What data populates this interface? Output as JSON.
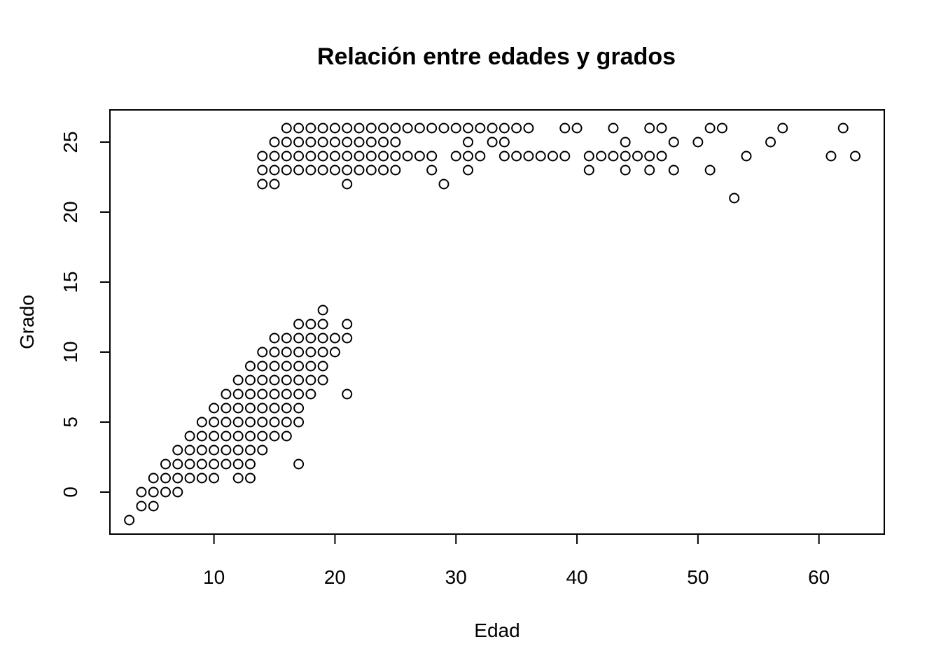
{
  "chart_data": {
    "type": "scatter",
    "title": "Relación entre edades y grados",
    "xlabel": "Edad",
    "ylabel": "Grado",
    "xlim": [
      1.4,
      65.4
    ],
    "ylim": [
      -3,
      27.3
    ],
    "xticks": [
      10,
      20,
      30,
      40,
      50,
      60
    ],
    "yticks": [
      0,
      5,
      10,
      15,
      20,
      25
    ],
    "grid": false,
    "marker": "open-circle",
    "points": [
      [
        3,
        -2
      ],
      [
        4,
        -1
      ],
      [
        4,
        0
      ],
      [
        5,
        -1
      ],
      [
        5,
        0
      ],
      [
        5,
        1
      ],
      [
        6,
        0
      ],
      [
        6,
        1
      ],
      [
        6,
        2
      ],
      [
        7,
        0
      ],
      [
        7,
        1
      ],
      [
        7,
        2
      ],
      [
        7,
        3
      ],
      [
        8,
        1
      ],
      [
        8,
        2
      ],
      [
        8,
        3
      ],
      [
        8,
        4
      ],
      [
        9,
        1
      ],
      [
        9,
        2
      ],
      [
        9,
        3
      ],
      [
        9,
        4
      ],
      [
        9,
        5
      ],
      [
        10,
        1
      ],
      [
        10,
        2
      ],
      [
        10,
        3
      ],
      [
        10,
        4
      ],
      [
        10,
        5
      ],
      [
        10,
        6
      ],
      [
        11,
        2
      ],
      [
        11,
        3
      ],
      [
        11,
        4
      ],
      [
        11,
        5
      ],
      [
        11,
        6
      ],
      [
        11,
        7
      ],
      [
        12,
        1
      ],
      [
        12,
        2
      ],
      [
        12,
        3
      ],
      [
        12,
        4
      ],
      [
        12,
        5
      ],
      [
        12,
        6
      ],
      [
        12,
        7
      ],
      [
        12,
        8
      ],
      [
        13,
        1
      ],
      [
        13,
        2
      ],
      [
        13,
        3
      ],
      [
        13,
        4
      ],
      [
        13,
        5
      ],
      [
        13,
        6
      ],
      [
        13,
        7
      ],
      [
        13,
        8
      ],
      [
        13,
        9
      ],
      [
        14,
        3
      ],
      [
        14,
        4
      ],
      [
        14,
        5
      ],
      [
        14,
        6
      ],
      [
        14,
        7
      ],
      [
        14,
        8
      ],
      [
        14,
        9
      ],
      [
        14,
        10
      ],
      [
        15,
        4
      ],
      [
        15,
        5
      ],
      [
        15,
        6
      ],
      [
        15,
        7
      ],
      [
        15,
        8
      ],
      [
        15,
        9
      ],
      [
        15,
        10
      ],
      [
        15,
        11
      ],
      [
        16,
        4
      ],
      [
        16,
        5
      ],
      [
        16,
        6
      ],
      [
        16,
        7
      ],
      [
        16,
        8
      ],
      [
        16,
        9
      ],
      [
        16,
        10
      ],
      [
        16,
        11
      ],
      [
        17,
        2
      ],
      [
        17,
        5
      ],
      [
        17,
        6
      ],
      [
        17,
        7
      ],
      [
        17,
        8
      ],
      [
        17,
        9
      ],
      [
        17,
        10
      ],
      [
        17,
        11
      ],
      [
        17,
        12
      ],
      [
        18,
        7
      ],
      [
        18,
        8
      ],
      [
        18,
        9
      ],
      [
        18,
        10
      ],
      [
        18,
        11
      ],
      [
        18,
        12
      ],
      [
        19,
        8
      ],
      [
        19,
        9
      ],
      [
        19,
        10
      ],
      [
        19,
        11
      ],
      [
        19,
        12
      ],
      [
        19,
        13
      ],
      [
        20,
        10
      ],
      [
        20,
        11
      ],
      [
        21,
        7
      ],
      [
        21,
        11
      ],
      [
        21,
        12
      ],
      [
        14,
        22
      ],
      [
        14,
        23
      ],
      [
        14,
        24
      ],
      [
        15,
        22
      ],
      [
        15,
        23
      ],
      [
        15,
        24
      ],
      [
        15,
        25
      ],
      [
        16,
        23
      ],
      [
        16,
        24
      ],
      [
        16,
        25
      ],
      [
        16,
        26
      ],
      [
        17,
        23
      ],
      [
        17,
        24
      ],
      [
        17,
        25
      ],
      [
        17,
        26
      ],
      [
        18,
        23
      ],
      [
        18,
        24
      ],
      [
        18,
        25
      ],
      [
        18,
        26
      ],
      [
        19,
        23
      ],
      [
        19,
        24
      ],
      [
        19,
        25
      ],
      [
        19,
        26
      ],
      [
        20,
        23
      ],
      [
        20,
        24
      ],
      [
        20,
        25
      ],
      [
        20,
        26
      ],
      [
        21,
        22
      ],
      [
        21,
        23
      ],
      [
        21,
        24
      ],
      [
        21,
        25
      ],
      [
        21,
        26
      ],
      [
        22,
        23
      ],
      [
        22,
        24
      ],
      [
        22,
        25
      ],
      [
        22,
        26
      ],
      [
        23,
        23
      ],
      [
        23,
        24
      ],
      [
        23,
        25
      ],
      [
        23,
        26
      ],
      [
        24,
        23
      ],
      [
        24,
        24
      ],
      [
        24,
        25
      ],
      [
        24,
        26
      ],
      [
        25,
        23
      ],
      [
        25,
        24
      ],
      [
        25,
        25
      ],
      [
        25,
        26
      ],
      [
        26,
        24
      ],
      [
        26,
        26
      ],
      [
        27,
        24
      ],
      [
        27,
        26
      ],
      [
        28,
        23
      ],
      [
        28,
        24
      ],
      [
        28,
        26
      ],
      [
        29,
        22
      ],
      [
        29,
        26
      ],
      [
        30,
        24
      ],
      [
        30,
        26
      ],
      [
        31,
        23
      ],
      [
        31,
        24
      ],
      [
        31,
        25
      ],
      [
        31,
        26
      ],
      [
        32,
        24
      ],
      [
        32,
        26
      ],
      [
        33,
        25
      ],
      [
        33,
        26
      ],
      [
        34,
        24
      ],
      [
        34,
        25
      ],
      [
        34,
        26
      ],
      [
        35,
        24
      ],
      [
        35,
        26
      ],
      [
        36,
        24
      ],
      [
        36,
        26
      ],
      [
        37,
        24
      ],
      [
        38,
        24
      ],
      [
        39,
        24
      ],
      [
        39,
        26
      ],
      [
        40,
        26
      ],
      [
        41,
        23
      ],
      [
        41,
        24
      ],
      [
        42,
        24
      ],
      [
        43,
        24
      ],
      [
        43,
        26
      ],
      [
        44,
        23
      ],
      [
        44,
        24
      ],
      [
        44,
        25
      ],
      [
        45,
        24
      ],
      [
        46,
        23
      ],
      [
        46,
        24
      ],
      [
        46,
        26
      ],
      [
        47,
        24
      ],
      [
        47,
        26
      ],
      [
        48,
        23
      ],
      [
        48,
        25
      ],
      [
        50,
        25
      ],
      [
        51,
        23
      ],
      [
        51,
        26
      ],
      [
        52,
        26
      ],
      [
        53,
        21
      ],
      [
        54,
        24
      ],
      [
        56,
        25
      ],
      [
        57,
        26
      ],
      [
        61,
        24
      ],
      [
        62,
        26
      ],
      [
        63,
        24
      ]
    ]
  }
}
